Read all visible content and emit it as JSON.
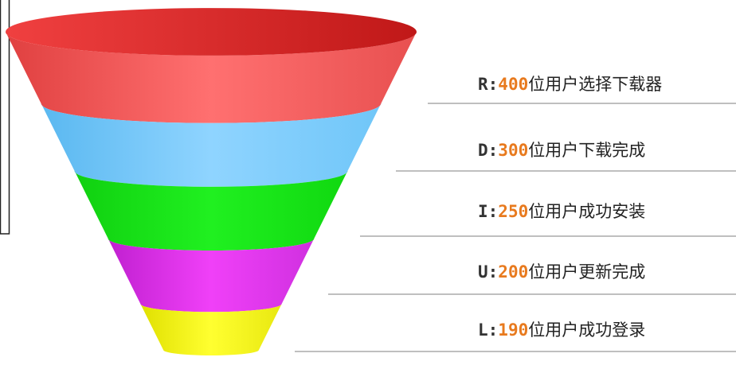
{
  "stages": [
    {
      "letter": "R:",
      "count": 400,
      "text": "位用户选择下载器"
    },
    {
      "letter": "D:",
      "count": 300,
      "text": "位用户下载完成"
    },
    {
      "letter": "I:",
      "count": 250,
      "text": "位用户成功安装"
    },
    {
      "letter": "U:",
      "count": 200,
      "text": "位用户更新完成"
    },
    {
      "letter": "L:",
      "count": 190,
      "text": "位用户成功登录"
    }
  ]
}
